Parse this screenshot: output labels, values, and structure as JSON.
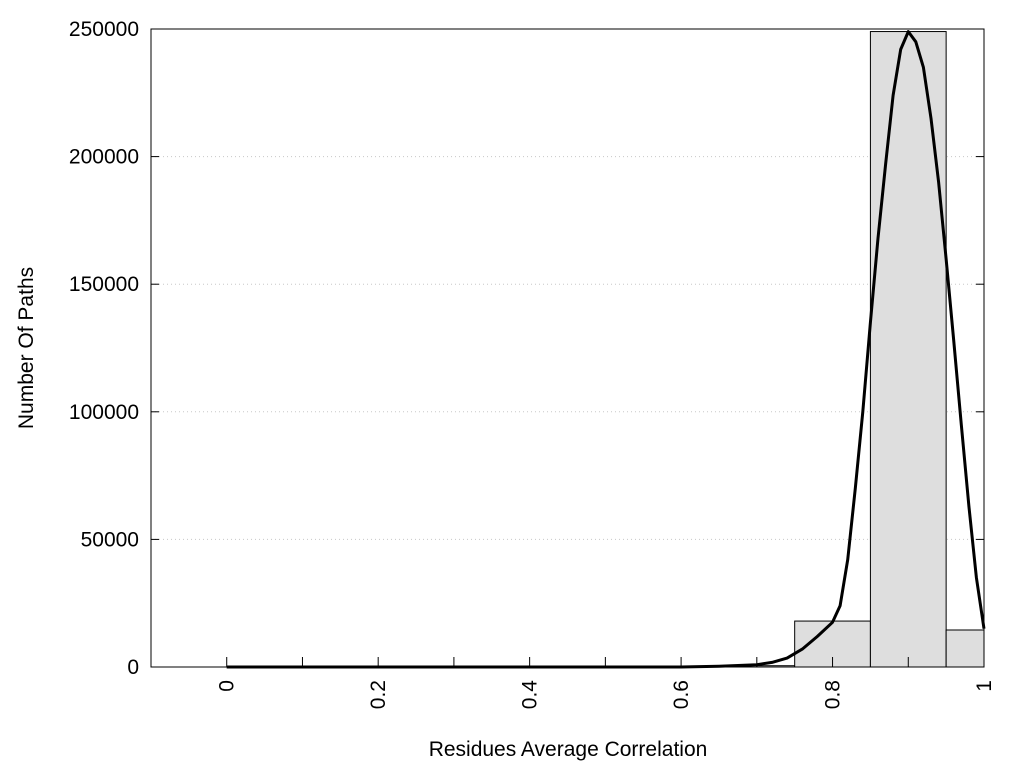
{
  "chart_data": {
    "type": "bar",
    "title": "",
    "xlabel": "Residues Average Correlation",
    "ylabel": "Number Of Paths",
    "xlim": [
      -0.1,
      1.0
    ],
    "ylim": [
      0,
      250000
    ],
    "x_ticks": [
      0,
      0.1,
      0.2,
      0.3,
      0.4,
      0.5,
      0.6,
      0.7,
      0.8,
      0.9,
      1.0
    ],
    "x_tick_labels": [
      {
        "x": 0,
        "label": "0"
      },
      {
        "x": 0.2,
        "label": "0.2"
      },
      {
        "x": 0.4,
        "label": "0.4"
      },
      {
        "x": 0.6,
        "label": "0.6"
      },
      {
        "x": 0.8,
        "label": "0.8"
      },
      {
        "x": 1.0,
        "label": "1"
      }
    ],
    "y_ticks": [
      {
        "y": 0,
        "label": "0"
      },
      {
        "y": 50000,
        "label": "50000"
      },
      {
        "y": 100000,
        "label": "100000"
      },
      {
        "y": 150000,
        "label": "150000"
      },
      {
        "y": 200000,
        "label": "200000"
      },
      {
        "y": 250000,
        "label": "250000"
      }
    ],
    "grid": "horizontal dotted",
    "legend": "none",
    "bars": [
      {
        "x0": 0.0,
        "x1": 0.7,
        "value": 0
      },
      {
        "x0": 0.7,
        "x1": 0.75,
        "value": 500
      },
      {
        "x0": 0.75,
        "x1": 0.85,
        "value": 18000
      },
      {
        "x0": 0.85,
        "x1": 0.95,
        "value": 249000
      },
      {
        "x0": 0.95,
        "x1": 1.0,
        "value": 14500
      }
    ],
    "fit_curve": {
      "x": [
        0.0,
        0.1,
        0.2,
        0.3,
        0.4,
        0.5,
        0.6,
        0.65,
        0.7,
        0.72,
        0.74,
        0.76,
        0.78,
        0.8,
        0.81,
        0.82,
        0.83,
        0.84,
        0.85,
        0.86,
        0.87,
        0.88,
        0.89,
        0.9,
        0.91,
        0.92,
        0.93,
        0.94,
        0.95,
        0.96,
        0.97,
        0.98,
        0.99,
        1.0
      ],
      "y": [
        0,
        0,
        0,
        0,
        0,
        0,
        0,
        300,
        900,
        1800,
        3500,
        7000,
        12000,
        17500,
        24000,
        42000,
        70000,
        100000,
        135000,
        168000,
        197000,
        224000,
        242000,
        249000,
        245000,
        235000,
        215000,
        190000,
        160000,
        128000,
        95000,
        63000,
        35000,
        15000
      ]
    },
    "colors": {
      "bar_fill": "#dedede",
      "bar_stroke": "#000000",
      "curve": "#000000",
      "grid": "#c8c8c8"
    }
  }
}
